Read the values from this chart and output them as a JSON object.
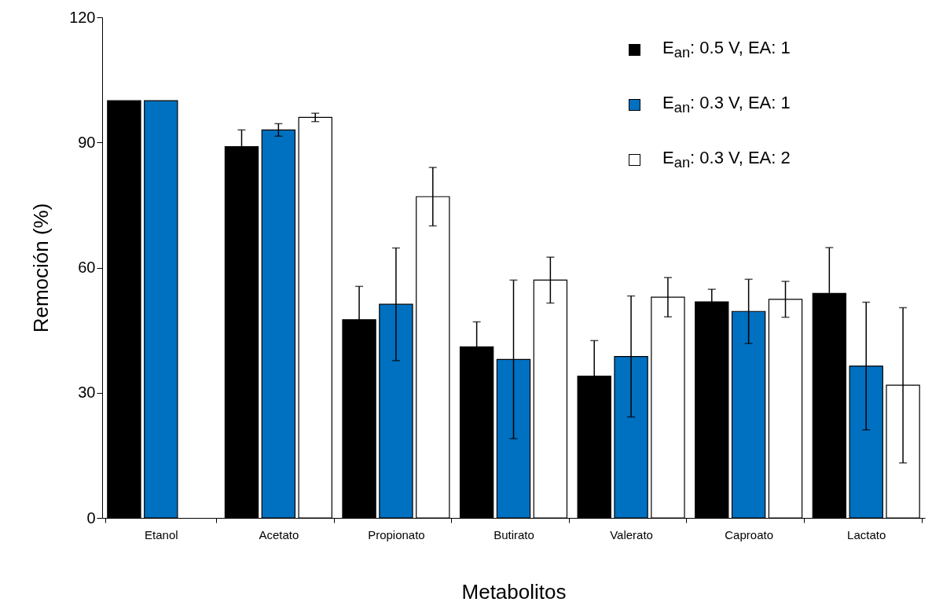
{
  "chart_data": {
    "type": "bar",
    "xlabel": "Metabolitos",
    "ylabel": "Remoción  (%)",
    "categories": [
      "Etanol",
      "Acetato",
      "Propionato",
      "Butirato",
      "Valerato",
      "Caproato",
      "Lactato"
    ],
    "series": [
      {
        "name": "E$_{an}$: 0.5 V,  EA: 1",
        "color": "#000000",
        "values": [
          100,
          89,
          47.5,
          41,
          34,
          51.8,
          53.8
        ],
        "errors": [
          null,
          4,
          8,
          6,
          8.5,
          3,
          11
        ]
      },
      {
        "name": "E$_{an}$: 0.3 V,  EA: 1",
        "color": "#0070c0",
        "values": [
          100,
          93,
          51.2,
          38,
          38.7,
          49.5,
          36.4
        ],
        "errors": [
          null,
          1.5,
          13.5,
          19,
          14.5,
          7.7,
          15.3
        ]
      },
      {
        "name": "E$_{an}$: 0.3 V,  EA: 2",
        "color": "#ffffff",
        "values": [
          null,
          96,
          77,
          57,
          52.9,
          52.4,
          31.8
        ],
        "errors": [
          null,
          1,
          7,
          5.5,
          4.7,
          4.3,
          18.6
        ]
      }
    ],
    "ylim": [
      0,
      120
    ],
    "yticks": [
      0,
      30,
      60,
      90,
      120
    ],
    "grid": false,
    "legend": "top right"
  }
}
